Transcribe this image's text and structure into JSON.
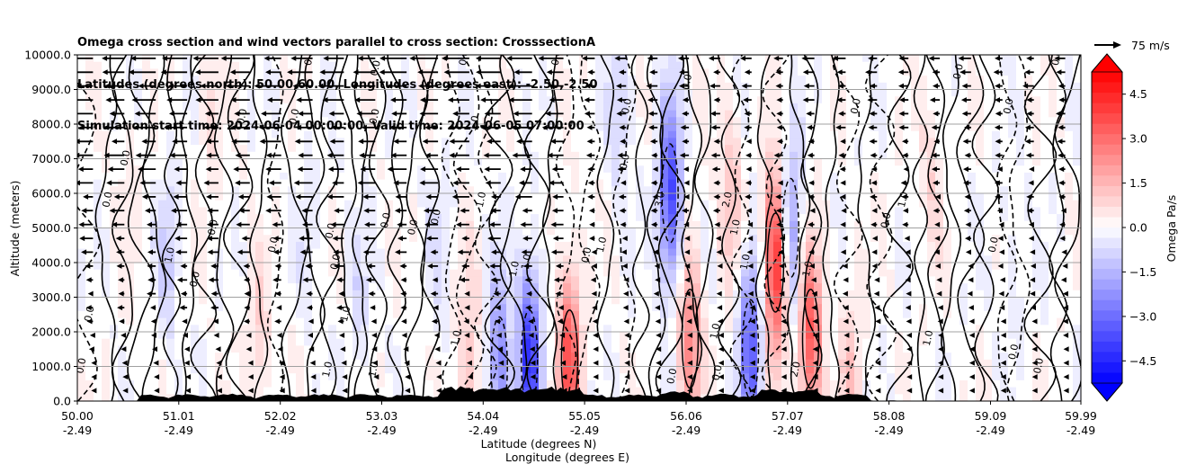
{
  "chart_data": {
    "type": "heatmap",
    "title_lines": [
      "Omega cross section and wind vectors parallel to cross section: CrosssectionA",
      "Latitudes (degrees north): 50.00,60.00, Longitudes (degrees east): -2.50,-2.50",
      "Simulation start time: 2024-06-04 00:00:00, Valid time: 2024-06-05 07:00:00"
    ],
    "ylabel": "Altitude (meters)",
    "xlabel_line1": "Latitude (degrees N)",
    "xlabel_line2": "Longitude (degrees E)",
    "ylim": [
      0,
      10000
    ],
    "xlim": [
      50.0,
      59.99
    ],
    "y_ticks": [
      "0.0",
      "1000.0",
      "2000.0",
      "3000.0",
      "4000.0",
      "5000.0",
      "6000.0",
      "7000.0",
      "8000.0",
      "9000.0",
      "10000.0"
    ],
    "y_tick_values": [
      0,
      1000,
      2000,
      3000,
      4000,
      5000,
      6000,
      7000,
      8000,
      9000,
      10000
    ],
    "x_ticks": [
      {
        "lat": "50.00",
        "lon": "-2.49",
        "value": 50.0
      },
      {
        "lat": "51.01",
        "lon": "-2.49",
        "value": 51.01
      },
      {
        "lat": "52.02",
        "lon": "-2.49",
        "value": 52.02
      },
      {
        "lat": "53.03",
        "lon": "-2.49",
        "value": 53.03
      },
      {
        "lat": "54.04",
        "lon": "-2.49",
        "value": 54.04
      },
      {
        "lat": "55.05",
        "lon": "-2.49",
        "value": 55.05
      },
      {
        "lat": "56.06",
        "lon": "-2.49",
        "value": 56.06
      },
      {
        "lat": "57.07",
        "lon": "-2.49",
        "value": 57.07
      },
      {
        "lat": "58.08",
        "lon": "-2.49",
        "value": 58.08
      },
      {
        "lat": "59.09",
        "lon": "-2.49",
        "value": 59.09
      },
      {
        "lat": "59.99",
        "lon": "-2.49",
        "value": 59.99
      }
    ],
    "grid": true,
    "colorbar": {
      "label": "Omega Pa/s",
      "range": [
        -5.25,
        5.25
      ],
      "extend": "both",
      "ticks": [
        "4.5",
        "3.0",
        "1.5",
        "0.0",
        "−1.5",
        "−3.0",
        "−4.5"
      ],
      "tick_values": [
        4.5,
        3.0,
        1.5,
        0.0,
        -1.5,
        -3.0,
        -4.5
      ],
      "cmap": "bwr"
    },
    "quiver_key": {
      "label": "75 m/s",
      "speed": 75
    },
    "omega_field": [
      {
        "lat": 50.5,
        "z": 6500,
        "omega": 0.4
      },
      {
        "lat": 50.9,
        "z": 4200,
        "omega": -0.9
      },
      {
        "lat": 51.3,
        "z": 8500,
        "omega": 0.6
      },
      {
        "lat": 51.8,
        "z": 1500,
        "omega": 0.9
      },
      {
        "lat": 52.3,
        "z": 5000,
        "omega": -0.4
      },
      {
        "lat": 52.8,
        "z": 3000,
        "omega": -0.6
      },
      {
        "lat": 53.6,
        "z": 4500,
        "omega": -0.5
      },
      {
        "lat": 53.9,
        "z": 1200,
        "omega": 1.2
      },
      {
        "lat": 54.2,
        "z": 1000,
        "omega": -2.5
      },
      {
        "lat": 54.5,
        "z": 1200,
        "omega": -4.2
      },
      {
        "lat": 54.9,
        "z": 1200,
        "omega": 3.6
      },
      {
        "lat": 55.4,
        "z": 8500,
        "omega": -1.0
      },
      {
        "lat": 55.9,
        "z": 6000,
        "omega": -3.8
      },
      {
        "lat": 56.1,
        "z": 1800,
        "omega": 2.5
      },
      {
        "lat": 56.5,
        "z": 6000,
        "omega": 1.2
      },
      {
        "lat": 56.7,
        "z": 1500,
        "omega": -3.4
      },
      {
        "lat": 56.95,
        "z": 4000,
        "omega": 4.6
      },
      {
        "lat": 57.1,
        "z": 5000,
        "omega": -2.2
      },
      {
        "lat": 57.3,
        "z": 1800,
        "omega": 3.4
      },
      {
        "lat": 57.7,
        "z": 800,
        "omega": 1.1
      },
      {
        "lat": 58.5,
        "z": 6500,
        "omega": 0.7
      },
      {
        "lat": 59.3,
        "z": 4000,
        "omega": -0.4
      }
    ],
    "contour_labels": [
      {
        "text": "0.0",
        "lat": 50.07,
        "z": 1000
      },
      {
        "text": "0.0",
        "lat": 50.15,
        "z": 2500
      },
      {
        "text": "0.0",
        "lat": 50.33,
        "z": 5800
      },
      {
        "text": "0.0",
        "lat": 50.51,
        "z": 7000
      },
      {
        "text": "1.0",
        "lat": 50.95,
        "z": 4200
      },
      {
        "text": "0.0",
        "lat": 51.2,
        "z": 3500
      },
      {
        "text": "0.0",
        "lat": 51.38,
        "z": 5000
      },
      {
        "text": "0.0",
        "lat": 51.67,
        "z": 8200
      },
      {
        "text": "0.0",
        "lat": 51.98,
        "z": 4500
      },
      {
        "text": "0.0",
        "lat": 52.19,
        "z": 8200
      },
      {
        "text": "0.0",
        "lat": 52.34,
        "z": 9900
      },
      {
        "text": "0.0",
        "lat": 52.55,
        "z": 4900
      },
      {
        "text": "0.0",
        "lat": 52.6,
        "z": 4000
      },
      {
        "text": "1.0",
        "lat": 52.7,
        "z": 2500
      },
      {
        "text": "1.0",
        "lat": 52.52,
        "z": 900
      },
      {
        "text": "0.0",
        "lat": 52.99,
        "z": 8200
      },
      {
        "text": "0.0",
        "lat": 53.0,
        "z": 9600
      },
      {
        "text": "0.0",
        "lat": 53.1,
        "z": 5200
      },
      {
        "text": "1.0",
        "lat": 52.98,
        "z": 900
      },
      {
        "text": "0.0",
        "lat": 53.37,
        "z": 5000
      },
      {
        "text": "0.0",
        "lat": 53.6,
        "z": 5300
      },
      {
        "text": "0.0",
        "lat": 53.88,
        "z": 9900
      },
      {
        "text": "1.0",
        "lat": 53.98,
        "z": 8000
      },
      {
        "text": "1.0",
        "lat": 54.05,
        "z": 5800
      },
      {
        "text": "1.0",
        "lat": 53.8,
        "z": 1800
      },
      {
        "text": "1.0",
        "lat": 54.38,
        "z": 3800
      },
      {
        "text": "1.0",
        "lat": 54.5,
        "z": 4000
      },
      {
        "text": "0.0",
        "lat": 54.8,
        "z": 9900
      },
      {
        "text": "1.0",
        "lat": 55.25,
        "z": 4500
      },
      {
        "text": "0.0",
        "lat": 55.1,
        "z": 4200
      },
      {
        "text": "0.0",
        "lat": 55.5,
        "z": 8500
      },
      {
        "text": "0.0",
        "lat": 55.48,
        "z": 6900
      },
      {
        "text": "3.0",
        "lat": 55.83,
        "z": 5800
      },
      {
        "text": "0.0",
        "lat": 55.95,
        "z": 700
      },
      {
        "text": "0.0",
        "lat": 56.1,
        "z": 9200
      },
      {
        "text": "2.0",
        "lat": 56.5,
        "z": 5800
      },
      {
        "text": "1.0",
        "lat": 56.58,
        "z": 5000
      },
      {
        "text": "1.0",
        "lat": 56.68,
        "z": 4000
      },
      {
        "text": "1.0",
        "lat": 56.38,
        "z": 2000
      },
      {
        "text": "0.0",
        "lat": 56.4,
        "z": 800
      },
      {
        "text": "2.0",
        "lat": 57.18,
        "z": 900
      },
      {
        "text": "1.0",
        "lat": 57.3,
        "z": 3800
      },
      {
        "text": "0.0",
        "lat": 57.78,
        "z": 8500
      },
      {
        "text": "0.0",
        "lat": 58.08,
        "z": 5200
      },
      {
        "text": "1.0",
        "lat": 58.25,
        "z": 5800
      },
      {
        "text": "1.0",
        "lat": 58.5,
        "z": 1800
      },
      {
        "text": "0.0",
        "lat": 58.8,
        "z": 9500
      },
      {
        "text": "0.0",
        "lat": 59.15,
        "z": 4500
      },
      {
        "text": "0.0",
        "lat": 59.3,
        "z": 8500
      },
      {
        "text": "0.0",
        "lat": 59.35,
        "z": 1400
      },
      {
        "text": "0.0",
        "lat": 59.6,
        "z": 1000
      },
      {
        "text": "0.0",
        "lat": 59.78,
        "z": 9900
      }
    ]
  }
}
